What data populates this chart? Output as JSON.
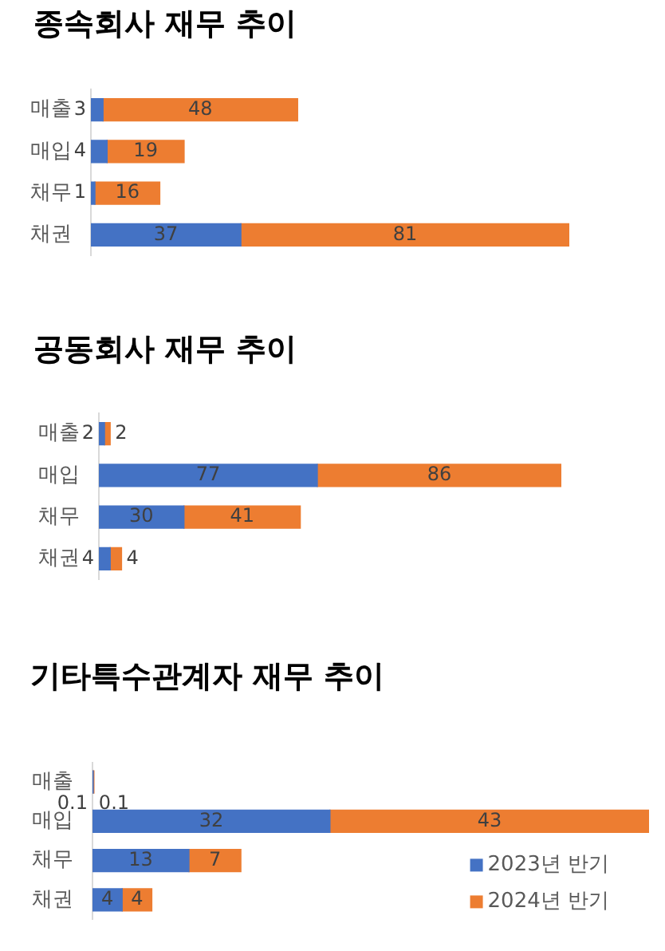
{
  "chart_data": [
    {
      "type": "bar",
      "orientation": "horizontal",
      "stacked": true,
      "title": "종속회사 재무 추이",
      "categories": [
        "매출",
        "매입",
        "채무",
        "채권"
      ],
      "series": [
        {
          "color": "#4472c4",
          "values": [
            3,
            4,
            1,
            37
          ]
        },
        {
          "color": "#ed7d31",
          "values": [
            48,
            19,
            16,
            81
          ]
        }
      ],
      "data_labels": true,
      "tick_labels": "y"
    },
    {
      "type": "bar",
      "orientation": "horizontal",
      "stacked": true,
      "title": "공동회사 재무 추이",
      "categories": [
        "매출",
        "매입",
        "채무",
        "채권"
      ],
      "series": [
        {
          "color": "#4472c4",
          "values": [
            2,
            77,
            30,
            4
          ]
        },
        {
          "color": "#ed7d31",
          "values": [
            2,
            86,
            41,
            4
          ]
        }
      ],
      "data_labels": true,
      "tick_labels": "y"
    },
    {
      "type": "bar",
      "orientation": "horizontal",
      "stacked": true,
      "title": "기타특수관계자 재무 추이",
      "categories": [
        "매출",
        "매입",
        "채무",
        "채권"
      ],
      "series": [
        {
          "name": "2023년 반기",
          "color": "#4472c4",
          "values": [
            0.1,
            32,
            13,
            4
          ]
        },
        {
          "name": "2024년 반기",
          "color": "#ed7d31",
          "values": [
            0.1,
            43,
            7,
            4
          ]
        }
      ],
      "data_labels": true,
      "tick_labels": "y",
      "legend": "bottom right"
    }
  ]
}
